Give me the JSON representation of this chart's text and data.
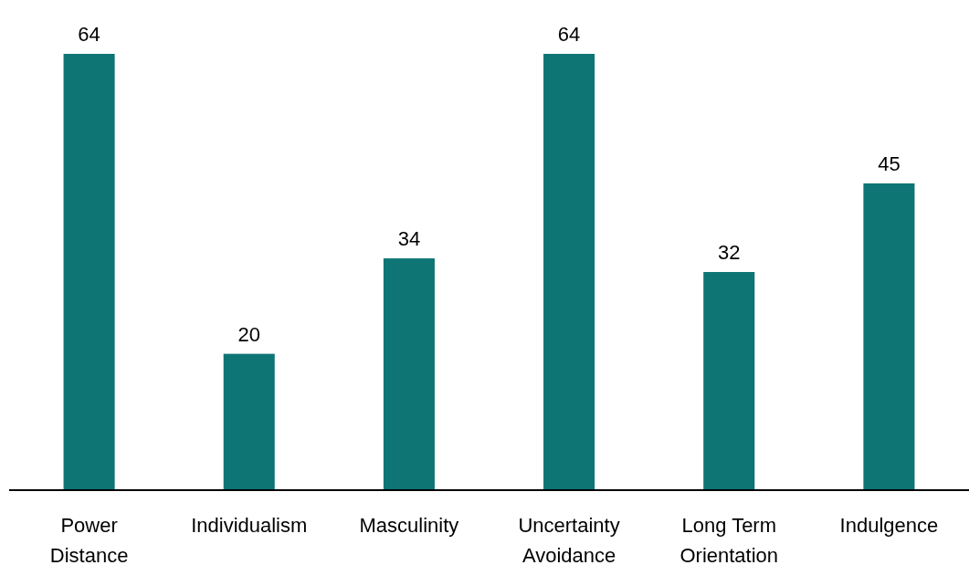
{
  "chart_data": {
    "type": "bar",
    "categories": [
      "Power Distance",
      "Individualism",
      "Masculinity",
      "Uncertainty Avoidance",
      "Long Term Orientation",
      "Indulgence"
    ],
    "values": [
      64,
      20,
      34,
      64,
      32,
      45
    ],
    "color": "#0e7574",
    "data_labels": true
  }
}
